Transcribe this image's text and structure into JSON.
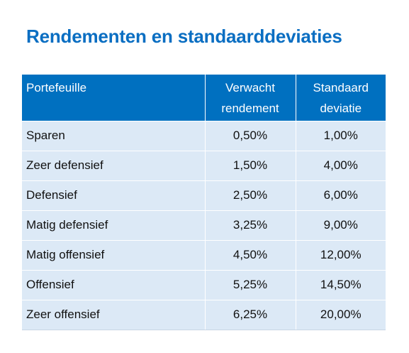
{
  "title": "Rendementen en standaarddeviaties",
  "colors": {
    "title": "#0a6ec2",
    "header_bg": "#0070c0",
    "header_text": "#ffffff",
    "row_bg": "#dce9f6"
  },
  "table": {
    "headers": [
      "Portefeuille",
      "Verwacht rendement",
      "Standaard deviatie"
    ],
    "rows": [
      {
        "portefeuille": "Sparen",
        "rendement": "0,50%",
        "deviatie": "1,00%"
      },
      {
        "portefeuille": "Zeer defensief",
        "rendement": "1,50%",
        "deviatie": "4,00%"
      },
      {
        "portefeuille": "Defensief",
        "rendement": "2,50%",
        "deviatie": "6,00%"
      },
      {
        "portefeuille": "Matig defensief",
        "rendement": "3,25%",
        "deviatie": "9,00%"
      },
      {
        "portefeuille": "Matig offensief",
        "rendement": "4,50%",
        "deviatie": "12,00%"
      },
      {
        "portefeuille": "Offensief",
        "rendement": "5,25%",
        "deviatie": "14,50%"
      },
      {
        "portefeuille": "Zeer offensief",
        "rendement": "6,25%",
        "deviatie": "20,00%"
      }
    ]
  }
}
